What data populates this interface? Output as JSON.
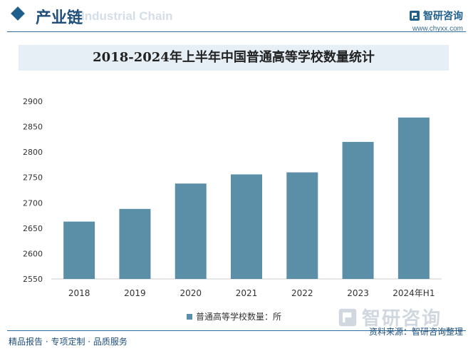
{
  "header": {
    "section_title": "产业链",
    "section_watermark": "Industrial Chain",
    "brand_name": "智研咨询",
    "brand_url": "www.chyxx.com"
  },
  "colors": {
    "bar": "#5b8fa8",
    "accent": "#1f5f8b"
  },
  "chart_data": {
    "type": "bar",
    "title": "2018-2024年上半年中国普通高等学校数量统计",
    "categories": [
      "2018",
      "2019",
      "2020",
      "2021",
      "2022",
      "2023",
      "2024年H1"
    ],
    "series": [
      {
        "name": "普通高等学校数量：所",
        "values": [
          2663,
          2688,
          2738,
          2756,
          2760,
          2820,
          2868
        ]
      }
    ],
    "ylim": [
      2550,
      2900
    ],
    "yticks": [
      2550,
      2600,
      2650,
      2700,
      2750,
      2800,
      2850,
      2900
    ],
    "xlabel": "",
    "ylabel": "",
    "grid": false,
    "legend": "bottom-center"
  },
  "footer": {
    "tagline": "精品报告 · 专项定制 · 品质服务",
    "source": "资料来源：智研咨询整理",
    "watermark_brand": "智研咨询"
  }
}
